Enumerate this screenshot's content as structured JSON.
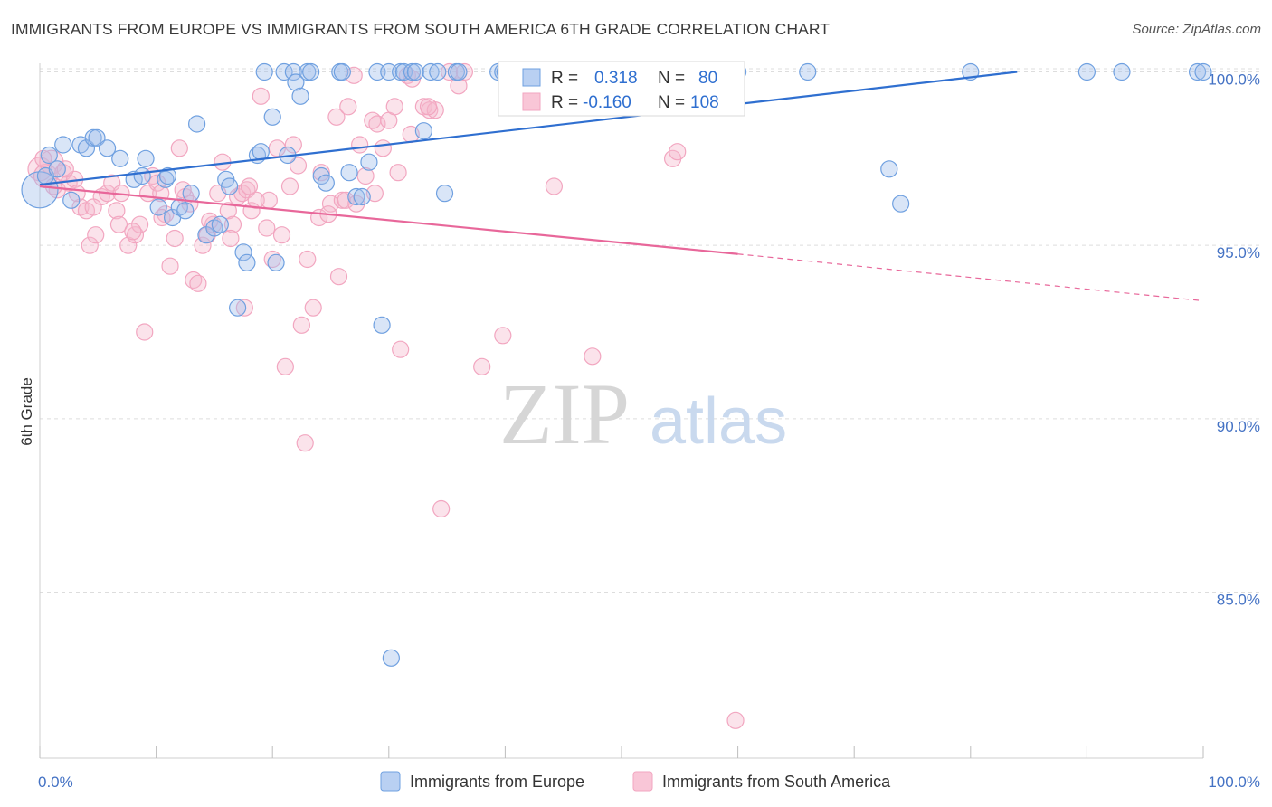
{
  "title": "IMMIGRANTS FROM EUROPE VS IMMIGRANTS FROM SOUTH AMERICA 6TH GRADE CORRELATION CHART",
  "source": "Source: ZipAtlas.com",
  "colors": {
    "europe": "#6fa0e0",
    "europe_line": "#2f6fd0",
    "sa": "#f2a6c0",
    "sa_line": "#e8679a",
    "axis_text": "#4472c4",
    "grid": "#dddddd"
  },
  "legend_box": {
    "europe": {
      "r_label": "R =",
      "r_value": "0.318",
      "n_label": "N =",
      "n_value": "80"
    },
    "sa": {
      "r_label": "R =",
      "r_value": "-0.160",
      "n_label": "N =",
      "n_value": "108"
    }
  },
  "bottom_legend": {
    "europe": "Immigrants from Europe",
    "sa": "Immigrants from South America"
  },
  "watermark": {
    "zip": "ZIP",
    "atlas": "atlas"
  },
  "chart_data": {
    "type": "scatter",
    "title": "IMMIGRANTS FROM EUROPE VS IMMIGRANTS FROM SOUTH AMERICA 6TH GRADE CORRELATION CHART",
    "xlabel": "",
    "ylabel": "6th Grade",
    "xlim": [
      0,
      100
    ],
    "ylim": [
      80.5,
      100.8
    ],
    "x_tick_labels": [
      "0.0%",
      "100.0%"
    ],
    "y_ticks": [
      85,
      90,
      95,
      100
    ],
    "y_tick_labels": [
      "85.0%",
      "90.0%",
      "95.0%",
      "100.0%"
    ],
    "grid": true,
    "legend_position": "top-center",
    "series": [
      {
        "name": "Immigrants from Europe",
        "color": "#6fa0e0",
        "r": 0.318,
        "n": 80,
        "trend": {
          "x": [
            0,
            84
          ],
          "y": [
            96.75,
            100
          ],
          "dashed_to": null
        },
        "points": [
          [
            0,
            96.6
          ],
          [
            0.5,
            97.0
          ],
          [
            0.8,
            97.6
          ],
          [
            1.5,
            97.2
          ],
          [
            2,
            97.9
          ],
          [
            2.7,
            96.3
          ],
          [
            3.5,
            97.9
          ],
          [
            4,
            97.8
          ],
          [
            4.6,
            98.1
          ],
          [
            4.9,
            98.1
          ],
          [
            5.8,
            97.8
          ],
          [
            6.9,
            97.5
          ],
          [
            8.1,
            96.9
          ],
          [
            8.8,
            97.0
          ],
          [
            9.1,
            97.5
          ],
          [
            10.2,
            96.1
          ],
          [
            10.8,
            96.9
          ],
          [
            11,
            97.0
          ],
          [
            11.4,
            95.8
          ],
          [
            12.0,
            96.1
          ],
          [
            12.5,
            96.0
          ],
          [
            13,
            96.5
          ],
          [
            13.5,
            98.5
          ],
          [
            14.3,
            95.3
          ],
          [
            15,
            95.5
          ],
          [
            15.5,
            95.6
          ],
          [
            16.0,
            96.9
          ],
          [
            16.3,
            96.7
          ],
          [
            17.0,
            93.2
          ],
          [
            17.5,
            94.8
          ],
          [
            17.8,
            94.5
          ],
          [
            18.7,
            97.6
          ],
          [
            19.0,
            97.7
          ],
          [
            19.3,
            100
          ],
          [
            20.0,
            98.7
          ],
          [
            20.3,
            94.5
          ],
          [
            21,
            100
          ],
          [
            21.3,
            97.6
          ],
          [
            21.8,
            100
          ],
          [
            22.0,
            99.7
          ],
          [
            22.4,
            99.3
          ],
          [
            23.0,
            100
          ],
          [
            23.3,
            100
          ],
          [
            24.2,
            97.0
          ],
          [
            24.6,
            96.8
          ],
          [
            25.8,
            100
          ],
          [
            26,
            100
          ],
          [
            26.6,
            97.1
          ],
          [
            27.2,
            96.4
          ],
          [
            27.7,
            96.4
          ],
          [
            28.3,
            97.4
          ],
          [
            29,
            100
          ],
          [
            29.4,
            92.7
          ],
          [
            30,
            100
          ],
          [
            30.2,
            83.1
          ],
          [
            31,
            100
          ],
          [
            31.3,
            100
          ],
          [
            32,
            100
          ],
          [
            32.3,
            100
          ],
          [
            33,
            98.3
          ],
          [
            33.6,
            100
          ],
          [
            34.2,
            100
          ],
          [
            34.8,
            96.5
          ],
          [
            35.8,
            100
          ],
          [
            36,
            100
          ],
          [
            39.4,
            100
          ],
          [
            39.8,
            100
          ],
          [
            40,
            100
          ],
          [
            46.5,
            100
          ],
          [
            52,
            100
          ],
          [
            57.5,
            100
          ],
          [
            60,
            100
          ],
          [
            66,
            100
          ],
          [
            73,
            97.2
          ],
          [
            74,
            96.2
          ],
          [
            80,
            100
          ],
          [
            90,
            100
          ],
          [
            93,
            100
          ],
          [
            99.5,
            100
          ],
          [
            100,
            100
          ]
        ]
      },
      {
        "name": "Immigrants from South America",
        "color": "#f2a6c0",
        "r": -0.16,
        "n": 108,
        "trend": {
          "x": [
            0,
            60
          ],
          "y": [
            96.7,
            94.75
          ],
          "dashed_to": [
            100,
            93.4
          ]
        },
        "points": [
          [
            0,
            97.2
          ],
          [
            0.5,
            97.0
          ],
          [
            1.0,
            97.4
          ],
          [
            1.5,
            96.6
          ],
          [
            2.0,
            97.1
          ],
          [
            2.5,
            96.8
          ],
          [
            3.0,
            96.9
          ],
          [
            3.5,
            96.1
          ],
          [
            4.0,
            96.0
          ],
          [
            4.3,
            95.0
          ],
          [
            4.8,
            95.3
          ],
          [
            5.3,
            96.4
          ],
          [
            5.8,
            96.5
          ],
          [
            6.2,
            96.8
          ],
          [
            6.6,
            96.0
          ],
          [
            7.0,
            96.5
          ],
          [
            7.6,
            95.0
          ],
          [
            8.2,
            95.3
          ],
          [
            8.6,
            95.6
          ],
          [
            9.0,
            92.5
          ],
          [
            9.3,
            96.5
          ],
          [
            9.7,
            97.0
          ],
          [
            10.1,
            96.8
          ],
          [
            10.4,
            96.5
          ],
          [
            10.8,
            95.9
          ],
          [
            11.2,
            94.4
          ],
          [
            11.6,
            95.2
          ],
          [
            12.0,
            97.8
          ],
          [
            12.5,
            96.4
          ],
          [
            12.9,
            96.2
          ],
          [
            13.2,
            94.0
          ],
          [
            13.6,
            93.9
          ],
          [
            14.0,
            95.0
          ],
          [
            14.4,
            95.3
          ],
          [
            14.9,
            95.6
          ],
          [
            15.3,
            96.5
          ],
          [
            15.7,
            97.4
          ],
          [
            16.2,
            96.0
          ],
          [
            16.6,
            95.6
          ],
          [
            17.0,
            96.4
          ],
          [
            17.4,
            96.5
          ],
          [
            17.8,
            96.6
          ],
          [
            18.2,
            96.0
          ],
          [
            18.6,
            96.3
          ],
          [
            19.0,
            99.3
          ],
          [
            19.5,
            95.5
          ],
          [
            20.0,
            94.6
          ],
          [
            20.4,
            97.8
          ],
          [
            21.1,
            91.5
          ],
          [
            21.8,
            97.9
          ],
          [
            22.5,
            92.7
          ],
          [
            22.8,
            89.3
          ],
          [
            23.5,
            93.2
          ],
          [
            24.0,
            95.8
          ],
          [
            24.2,
            97.1
          ],
          [
            25.0,
            96.2
          ],
          [
            25.5,
            98.7
          ],
          [
            26.0,
            96.3
          ],
          [
            26.5,
            99.0
          ],
          [
            27.0,
            99.9
          ],
          [
            27.5,
            97.9
          ],
          [
            28.0,
            97.0
          ],
          [
            28.6,
            98.6
          ],
          [
            29.0,
            98.5
          ],
          [
            29.5,
            97.8
          ],
          [
            30.0,
            98.6
          ],
          [
            30.5,
            99.0
          ],
          [
            31.0,
            92.0
          ],
          [
            31.6,
            99.9
          ],
          [
            32.0,
            99.8
          ],
          [
            33.0,
            99.0
          ],
          [
            33.5,
            98.9
          ],
          [
            34.0,
            98.9
          ],
          [
            34.5,
            87.4
          ],
          [
            35.2,
            100
          ],
          [
            36.0,
            99.6
          ],
          [
            36.5,
            100
          ],
          [
            38.0,
            91.5
          ],
          [
            39.8,
            92.4
          ],
          [
            44.2,
            96.7
          ],
          [
            47.5,
            91.8
          ],
          [
            54.4,
            97.5
          ],
          [
            54.8,
            97.7
          ],
          [
            59.8,
            81.3
          ],
          [
            12.3,
            96.6
          ],
          [
            18.0,
            96.7
          ],
          [
            20.8,
            95.3
          ],
          [
            23.0,
            94.6
          ],
          [
            25.7,
            94.1
          ],
          [
            26.3,
            96.3
          ],
          [
            27.2,
            96.2
          ],
          [
            1.2,
            96.7
          ],
          [
            2.2,
            97.2
          ],
          [
            3.2,
            96.5
          ],
          [
            4.6,
            96.1
          ],
          [
            6.8,
            95.6
          ],
          [
            8.0,
            95.4
          ],
          [
            10.5,
            95.8
          ],
          [
            14.6,
            95.7
          ],
          [
            16.4,
            95.2
          ],
          [
            17.6,
            93.2
          ],
          [
            19.7,
            96.3
          ],
          [
            21.5,
            96.7
          ],
          [
            22.2,
            97.3
          ],
          [
            24.8,
            95.9
          ],
          [
            28.8,
            96.5
          ],
          [
            30.8,
            97.1
          ],
          [
            31.9,
            98.2
          ],
          [
            33.4,
            99.0
          ],
          [
            0.3,
            97.5
          ]
        ]
      }
    ]
  }
}
